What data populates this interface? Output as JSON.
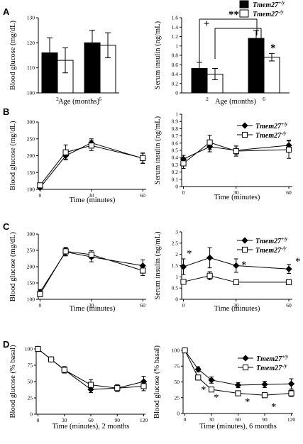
{
  "panels": [
    "A",
    "B",
    "C",
    "D"
  ],
  "chart_data": [
    {
      "type": "bar",
      "panel": "A",
      "categories": [
        "2",
        "6"
      ],
      "series": [
        {
          "name": "Tmem27+/y",
          "color": "#000000",
          "values": [
            116,
            120
          ],
          "errors": [
            6,
            5
          ]
        },
        {
          "name": "Tmem27-/y",
          "color": "#ffffff",
          "values": [
            113,
            119
          ],
          "errors": [
            5,
            5
          ]
        }
      ],
      "xlabel": "Age (months)",
      "ylabel": "Blood glucose (mg/dL)",
      "ylim": [
        100,
        130
      ],
      "yticks": [
        "100",
        "110",
        "120",
        "130"
      ]
    },
    {
      "type": "bar",
      "panel": "A",
      "categories": [
        "2",
        "6"
      ],
      "series": [
        {
          "name": "Tmem27+/y",
          "color": "#000000",
          "values": [
            0.52,
            1.16
          ],
          "errors": [
            0.13,
            0.17
          ]
        },
        {
          "name": "Tmem27-/y",
          "color": "#ffffff",
          "values": [
            0.4,
            0.76
          ],
          "errors": [
            0.12,
            0.08
          ]
        }
      ],
      "xlabel": "Age (months)",
      "ylabel": "Serum insulin (ng/mL)",
      "ylim": [
        0,
        1.6
      ],
      "yticks": [
        "0",
        "0.2",
        "0.4",
        "0.6",
        "0.8",
        "1",
        "1.2",
        "1.4",
        "1.6"
      ],
      "annotations": [
        "+",
        "**",
        "*"
      ],
      "legend": "top-right"
    },
    {
      "type": "line",
      "panel": "B",
      "x": [
        0,
        15,
        30,
        60
      ],
      "series": [
        {
          "name": "Tmem27+/y",
          "marker": "diamond",
          "values": [
            105,
            200,
            238,
            192
          ],
          "errors": [
            5,
            10,
            12,
            15
          ]
        },
        {
          "name": "Tmem27-/y",
          "marker": "square",
          "values": [
            112,
            210,
            230,
            193
          ],
          "errors": [
            5,
            22,
            15,
            15
          ]
        }
      ],
      "xlabel": "Time (minutes)",
      "ylabel": "Blood glucose (mg/dL)",
      "ylim": [
        100,
        300
      ],
      "yticks": [
        "100",
        "150",
        "200",
        "250",
        "300"
      ],
      "xticks": [
        "0",
        "30",
        "60"
      ]
    },
    {
      "type": "line",
      "panel": "B",
      "x": [
        0,
        15,
        30,
        60
      ],
      "series": [
        {
          "name": "Tmem27+/y",
          "marker": "diamond",
          "values": [
            0.38,
            0.55,
            0.5,
            0.57
          ],
          "errors": [
            0.05,
            0.07,
            0.06,
            0.07
          ]
        },
        {
          "name": "Tmem27-/y",
          "marker": "square",
          "values": [
            0.32,
            0.61,
            0.49,
            0.51
          ],
          "errors": [
            0.07,
            0.1,
            0.07,
            0.12
          ]
        }
      ],
      "xlabel": "Time (minutes)",
      "ylabel": "Serum insulin (ng/mL)",
      "ylim": [
        0,
        1
      ],
      "yticks": [
        "0",
        "0.1",
        "0.2",
        "0.3",
        "0.4",
        "0.5",
        "0.6",
        "0.7",
        "0.8",
        "0.9",
        "1"
      ],
      "xticks": [
        "0",
        "30",
        "60"
      ],
      "legend": "top-right"
    },
    {
      "type": "line",
      "panel": "C",
      "x": [
        0,
        15,
        30,
        60
      ],
      "series": [
        {
          "name": "Tmem27+/y",
          "marker": "diamond",
          "values": [
            122,
            245,
            230,
            203
          ],
          "errors": [
            8,
            12,
            15,
            18
          ]
        },
        {
          "name": "Tmem27-/y",
          "marker": "square",
          "values": [
            116,
            247,
            237,
            188
          ],
          "errors": [
            8,
            12,
            12,
            15
          ]
        }
      ],
      "xlabel": "Time (minutes)",
      "ylabel": "Blood glucose (mg/dL)",
      "ylim": [
        100,
        300
      ],
      "yticks": [
        "100",
        "150",
        "200",
        "250",
        "300"
      ],
      "xticks": [
        "0",
        "30",
        "60"
      ]
    },
    {
      "type": "line",
      "panel": "C",
      "x": [
        0,
        15,
        30,
        60
      ],
      "series": [
        {
          "name": "Tmem27+/y",
          "marker": "diamond",
          "values": [
            1.45,
            1.85,
            1.5,
            1.35
          ],
          "errors": [
            0.35,
            0.45,
            0.3,
            0.2
          ]
        },
        {
          "name": "Tmem27-/y",
          "marker": "square",
          "values": [
            0.78,
            1.05,
            0.76,
            0.76
          ],
          "errors": [
            0.1,
            0.18,
            0.06,
            0.08
          ]
        }
      ],
      "xlabel": "Time (minutes)",
      "ylabel": "Serum insulin (ng/mL)",
      "ylim": [
        0,
        3
      ],
      "yticks": [
        "0",
        "0.5",
        "1",
        "1.5",
        "2",
        "2.5",
        "3"
      ],
      "xticks": [
        "0",
        "30",
        "60"
      ],
      "annotations": [
        "*",
        "*",
        "*"
      ],
      "legend": "top-right"
    },
    {
      "type": "line",
      "panel": "D",
      "x": [
        0,
        15,
        30,
        60,
        90,
        120
      ],
      "series": [
        {
          "name": "Tmem27+/y",
          "marker": "diamond",
          "values": [
            100,
            84,
            68,
            38,
            40,
            50
          ],
          "errors": [
            2,
            3,
            4,
            5,
            5,
            8
          ]
        },
        {
          "name": "Tmem27-/y",
          "marker": "square",
          "values": [
            100,
            84,
            68,
            45,
            40,
            43
          ],
          "errors": [
            2,
            3,
            5,
            8,
            5,
            7
          ]
        }
      ],
      "xlabel": "Time (minutes), 2 months",
      "ylabel": "Blood glucose (% basal)",
      "ylim": [
        0,
        100
      ],
      "yticks": [
        "0",
        "25",
        "50",
        "75",
        "100"
      ],
      "xticks": [
        "0",
        "30",
        "60",
        "90",
        "120"
      ]
    },
    {
      "type": "line",
      "panel": "D",
      "x": [
        0,
        15,
        30,
        60,
        90,
        120
      ],
      "series": [
        {
          "name": "Tmem27+/y",
          "marker": "diamond",
          "values": [
            100,
            70,
            53,
            45,
            46,
            47
          ],
          "errors": [
            2,
            4,
            5,
            4,
            5,
            8
          ]
        },
        {
          "name": "Tmem27-/y",
          "marker": "square",
          "values": [
            100,
            57,
            38,
            32,
            29,
            32
          ],
          "errors": [
            2,
            4,
            3,
            3,
            3,
            5
          ]
        }
      ],
      "xlabel": "Time (minutes), 6 months",
      "ylabel": "Blood glucose (% basal)",
      "ylim": [
        0,
        100
      ],
      "yticks": [
        "0",
        "25",
        "50",
        "75",
        "100"
      ],
      "xticks": [
        "0",
        "30",
        "60",
        "90",
        "120"
      ],
      "annotations": [
        "*",
        "*",
        "*",
        "*"
      ],
      "legend": "top-right"
    }
  ]
}
